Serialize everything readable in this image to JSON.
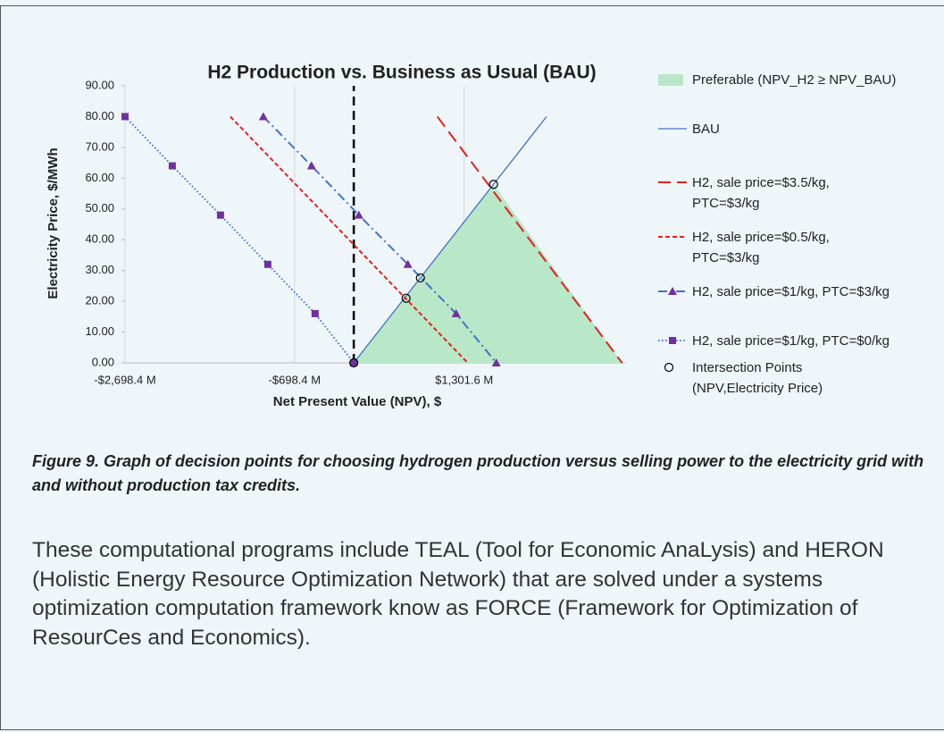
{
  "chart_data": {
    "type": "line",
    "title": "H2 Production vs. Business as Usual (BAU)",
    "xlabel": "Net Present Value (NPV), $",
    "ylabel": "Electricity Price, $/MWh",
    "xlim": [
      -2698.4,
      3201.6
    ],
    "xticks": [
      {
        "value": -2698.4,
        "label": "-$2,698.4 M"
      },
      {
        "value": -698.4,
        "label": "-$698.4 M"
      },
      {
        "value": 1301.6,
        "label": "$1,301.6 M"
      }
    ],
    "ylim": [
      0,
      90
    ],
    "yticks": [
      {
        "value": 0,
        "label": "0.00"
      },
      {
        "value": 10,
        "label": "10.00"
      },
      {
        "value": 20,
        "label": "20.00"
      },
      {
        "value": 30,
        "label": "30.00"
      },
      {
        "value": 40,
        "label": "40.00"
      },
      {
        "value": 50,
        "label": "50.00"
      },
      {
        "value": 60,
        "label": "60.00"
      },
      {
        "value": 70,
        "label": "70.00"
      },
      {
        "value": 80,
        "label": "80.00"
      },
      {
        "value": 90,
        "label": "90.00"
      }
    ],
    "grid": "x",
    "vline": 0,
    "vline_color": "#000000",
    "series": [
      {
        "name": "Preferable (NPV_H2 ≥ NPV_BAU)",
        "kind": "area",
        "color": "#b8e8c8",
        "x": [
          0,
          1649,
          3165
        ],
        "values": [
          0,
          58,
          0
        ]
      },
      {
        "name": "BAU",
        "kind": "line",
        "color": "#4472c4",
        "dash": "solid",
        "x": [
          0,
          2274
        ],
        "values": [
          0,
          80
        ]
      },
      {
        "name": "H2, sale price=$3.5/kg, PTC=$3/kg",
        "kind": "line",
        "color": "#e3211c",
        "dash": "long",
        "x": [
          986,
          3165
        ],
        "values": [
          80,
          0
        ]
      },
      {
        "name": "H2, sale price=$0.5/kg, PTC=$3/kg",
        "kind": "line",
        "color": "#e3211c",
        "dash": "short",
        "x": [
          -1456,
          1344
        ],
        "values": [
          80,
          0
        ]
      },
      {
        "name": "H2, sale price=$1/kg, PTC=$3/kg",
        "kind": "line",
        "color": "#4472c4",
        "dash": "dashdot",
        "marker": "triangle",
        "marker_color": "#7030a0",
        "x": [
          -1067,
          -498,
          60,
          638,
          1207,
          1681
        ],
        "values": [
          80,
          64,
          48,
          32,
          16,
          0
        ]
      },
      {
        "name": "H2, sale price=$1/kg, PTC=$0/kg",
        "kind": "line",
        "color": "#4472c4",
        "dash": "dot",
        "marker": "square",
        "marker_color": "#7030a0",
        "x": [
          -2698.4,
          -2141,
          -1572,
          -1014,
          -456,
          0
        ],
        "values": [
          80,
          64,
          48,
          32,
          16,
          0
        ]
      },
      {
        "name": "Intersection Points (NPV,Electricity Price)",
        "kind": "points",
        "color": "#000000",
        "marker": "circle",
        "x": [
          0,
          617,
          786,
          1649
        ],
        "values": [
          0,
          21,
          27.6,
          58
        ]
      }
    ]
  },
  "caption": "Figure 9. Graph of decision points for choosing hydrogen production versus selling power to the electricity grid with and without production tax credits.",
  "paragraph": "These computational programs include TEAL (Tool for Economic AnaLysis) and HERON (Holistic Energy Resource Optimization Network) that are solved under a systems optimization computation framework know as FORCE (Framework for Optimization of ResourCes and Economics)."
}
